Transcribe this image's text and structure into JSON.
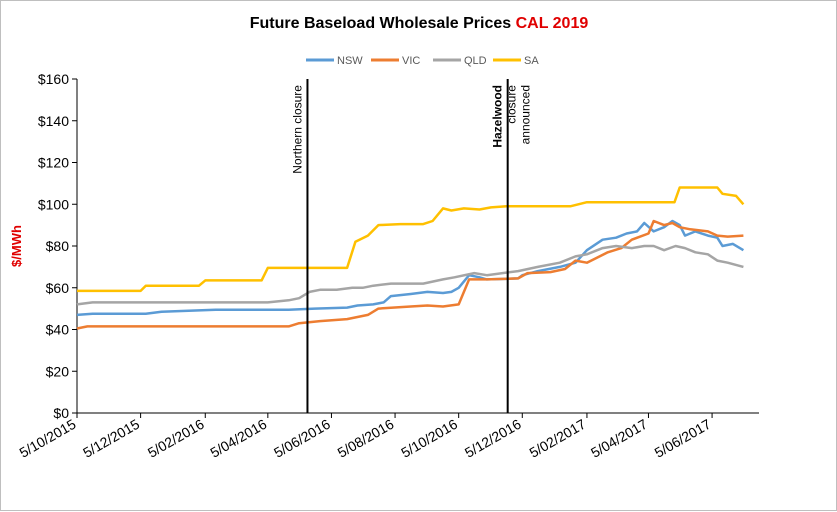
{
  "chart_data": {
    "type": "line",
    "title": "Future Baseload Wholesale Prices ",
    "title_highlight": "CAL 2019",
    "title_highlight_color": "#e00000",
    "ylabel": "$/MWh",
    "ylabel_color": "#e00000",
    "ylim": [
      0,
      160
    ],
    "ytick_labels": [
      "$0",
      "$20",
      "$40",
      "$60",
      "$80",
      "$100",
      "$120",
      "$140",
      "$160"
    ],
    "xlim": [
      "2015-10-05",
      "2017-07-20"
    ],
    "x_tick_labels": [
      {
        "date": "2015-10-05",
        "label": "5/10/2015"
      },
      {
        "date": "2015-12-05",
        "label": "5/12/2015"
      },
      {
        "date": "2016-02-05",
        "label": "5/02/2016"
      },
      {
        "date": "2016-04-05",
        "label": "5/04/2016"
      },
      {
        "date": "2016-06-05",
        "label": "5/06/2016"
      },
      {
        "date": "2016-08-05",
        "label": "5/08/2016"
      },
      {
        "date": "2016-10-05",
        "label": "5/10/2016"
      },
      {
        "date": "2016-12-05",
        "label": "5/12/2016"
      },
      {
        "date": "2017-02-05",
        "label": "5/02/2017"
      },
      {
        "date": "2017-04-05",
        "label": "5/04/2017"
      },
      {
        "date": "2017-06-05",
        "label": "5/06/2017"
      }
    ],
    "grid": false,
    "legend_position": "top",
    "annotations": [
      {
        "date": "2016-05-13",
        "lines": [
          "Northern closure"
        ],
        "bold": [
          false
        ]
      },
      {
        "date": "2016-11-21",
        "lines": [
          "Hazelwood",
          "closure",
          "announced"
        ],
        "bold": [
          true,
          false,
          false
        ]
      }
    ],
    "series": [
      {
        "name": "NSW",
        "color": "#5b9bd5",
        "points": [
          [
            "2015-10-05",
            47
          ],
          [
            "2015-10-20",
            47.5
          ],
          [
            "2015-12-10",
            47.5
          ],
          [
            "2015-12-25",
            48.5
          ],
          [
            "2016-01-20",
            49
          ],
          [
            "2016-02-15",
            49.5
          ],
          [
            "2016-04-25",
            49.5
          ],
          [
            "2016-05-20",
            50
          ],
          [
            "2016-06-20",
            50.5
          ],
          [
            "2016-06-30",
            51.5
          ],
          [
            "2016-07-15",
            52
          ],
          [
            "2016-07-25",
            53
          ],
          [
            "2016-08-01",
            56
          ],
          [
            "2016-08-20",
            57
          ],
          [
            "2016-09-05",
            58
          ],
          [
            "2016-09-20",
            57.5
          ],
          [
            "2016-09-28",
            58
          ],
          [
            "2016-10-05",
            60
          ],
          [
            "2016-10-15",
            66
          ],
          [
            "2016-10-25",
            65
          ],
          [
            "2016-11-01",
            64
          ],
          [
            "2016-12-01",
            64.5
          ],
          [
            "2016-12-05",
            66
          ],
          [
            "2016-12-20",
            68
          ],
          [
            "2017-01-10",
            70
          ],
          [
            "2017-01-25",
            72
          ],
          [
            "2017-02-05",
            78
          ],
          [
            "2017-02-20",
            83
          ],
          [
            "2017-03-05",
            84
          ],
          [
            "2017-03-15",
            86
          ],
          [
            "2017-03-25",
            87
          ],
          [
            "2017-04-01",
            91
          ],
          [
            "2017-04-10",
            87
          ],
          [
            "2017-04-20",
            89
          ],
          [
            "2017-04-28",
            92
          ],
          [
            "2017-05-05",
            90
          ],
          [
            "2017-05-10",
            85
          ],
          [
            "2017-05-20",
            87
          ],
          [
            "2017-06-01",
            85
          ],
          [
            "2017-06-10",
            84
          ],
          [
            "2017-06-15",
            80
          ],
          [
            "2017-06-25",
            81
          ],
          [
            "2017-07-05",
            78
          ]
        ]
      },
      {
        "name": "VIC",
        "color": "#ed7d31",
        "points": [
          [
            "2015-10-05",
            40.5
          ],
          [
            "2015-10-15",
            41.5
          ],
          [
            "2016-04-25",
            41.5
          ],
          [
            "2016-05-05",
            43
          ],
          [
            "2016-05-25",
            44
          ],
          [
            "2016-06-20",
            45
          ],
          [
            "2016-07-10",
            47
          ],
          [
            "2016-07-20",
            50
          ],
          [
            "2016-08-20",
            51
          ],
          [
            "2016-09-05",
            51.5
          ],
          [
            "2016-09-20",
            51
          ],
          [
            "2016-10-05",
            52
          ],
          [
            "2016-10-15",
            64
          ],
          [
            "2016-11-01",
            64
          ],
          [
            "2016-12-01",
            64.5
          ],
          [
            "2016-12-10",
            67
          ],
          [
            "2017-01-01",
            67.5
          ],
          [
            "2017-01-15",
            69
          ],
          [
            "2017-01-25",
            73
          ],
          [
            "2017-02-05",
            72
          ],
          [
            "2017-02-25",
            77
          ],
          [
            "2017-03-10",
            79
          ],
          [
            "2017-03-20",
            83
          ],
          [
            "2017-04-05",
            86
          ],
          [
            "2017-04-10",
            92
          ],
          [
            "2017-04-20",
            90
          ],
          [
            "2017-04-28",
            91
          ],
          [
            "2017-05-05",
            89
          ],
          [
            "2017-05-15",
            88
          ],
          [
            "2017-06-01",
            87
          ],
          [
            "2017-06-10",
            85
          ],
          [
            "2017-06-20",
            84.5
          ],
          [
            "2017-07-05",
            85
          ]
        ]
      },
      {
        "name": "QLD",
        "color": "#a5a5a5",
        "points": [
          [
            "2015-10-05",
            52
          ],
          [
            "2015-10-20",
            53
          ],
          [
            "2016-04-05",
            53
          ],
          [
            "2016-04-25",
            54
          ],
          [
            "2016-05-05",
            55
          ],
          [
            "2016-05-15",
            58
          ],
          [
            "2016-05-25",
            59
          ],
          [
            "2016-06-10",
            59
          ],
          [
            "2016-06-25",
            60
          ],
          [
            "2016-07-05",
            60
          ],
          [
            "2016-07-15",
            61
          ],
          [
            "2016-08-01",
            62
          ],
          [
            "2016-09-01",
            62
          ],
          [
            "2016-09-20",
            64
          ],
          [
            "2016-10-01",
            65
          ],
          [
            "2016-10-20",
            67
          ],
          [
            "2016-11-01",
            66
          ],
          [
            "2016-12-01",
            68
          ],
          [
            "2016-12-20",
            70
          ],
          [
            "2017-01-10",
            72
          ],
          [
            "2017-01-25",
            75
          ],
          [
            "2017-02-05",
            76
          ],
          [
            "2017-02-20",
            79
          ],
          [
            "2017-03-05",
            80
          ],
          [
            "2017-03-20",
            79
          ],
          [
            "2017-04-01",
            80
          ],
          [
            "2017-04-10",
            80
          ],
          [
            "2017-04-20",
            78
          ],
          [
            "2017-05-01",
            80
          ],
          [
            "2017-05-10",
            79
          ],
          [
            "2017-05-20",
            77
          ],
          [
            "2017-06-01",
            76
          ],
          [
            "2017-06-10",
            73
          ],
          [
            "2017-06-20",
            72
          ],
          [
            "2017-07-05",
            70
          ]
        ]
      },
      {
        "name": "SA",
        "color": "#ffc000",
        "points": [
          [
            "2015-10-05",
            58.5
          ],
          [
            "2015-12-05",
            58.5
          ],
          [
            "2015-12-10",
            61
          ],
          [
            "2016-01-30",
            61
          ],
          [
            "2016-02-05",
            63.5
          ],
          [
            "2016-03-30",
            63.5
          ],
          [
            "2016-04-05",
            69.5
          ],
          [
            "2016-06-20",
            69.5
          ],
          [
            "2016-06-28",
            82
          ],
          [
            "2016-07-10",
            85
          ],
          [
            "2016-07-20",
            90
          ],
          [
            "2016-08-10",
            90.5
          ],
          [
            "2016-09-01",
            90.5
          ],
          [
            "2016-09-10",
            92
          ],
          [
            "2016-09-20",
            98
          ],
          [
            "2016-09-28",
            97
          ],
          [
            "2016-10-10",
            98
          ],
          [
            "2016-10-25",
            97.5
          ],
          [
            "2016-11-05",
            98.5
          ],
          [
            "2016-11-20",
            99
          ],
          [
            "2017-01-20",
            99
          ],
          [
            "2017-02-05",
            101
          ],
          [
            "2017-04-30",
            101
          ],
          [
            "2017-05-05",
            108
          ],
          [
            "2017-06-10",
            108
          ],
          [
            "2017-06-15",
            105
          ],
          [
            "2017-06-28",
            104
          ],
          [
            "2017-07-05",
            100
          ]
        ]
      }
    ]
  }
}
